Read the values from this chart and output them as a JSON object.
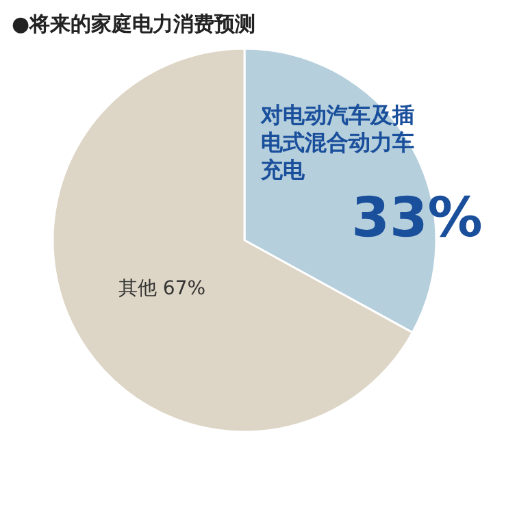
{
  "chart_data": {
    "type": "pie",
    "title": "●将来的家庭电力消费预测",
    "categories": [
      "对电动汽车及插电式混合动力车充电",
      "其他"
    ],
    "values": [
      33,
      67
    ],
    "colors": [
      "#b5cfdc",
      "#ddd5c5"
    ],
    "value_labels": [
      "33%",
      "67%"
    ]
  }
}
